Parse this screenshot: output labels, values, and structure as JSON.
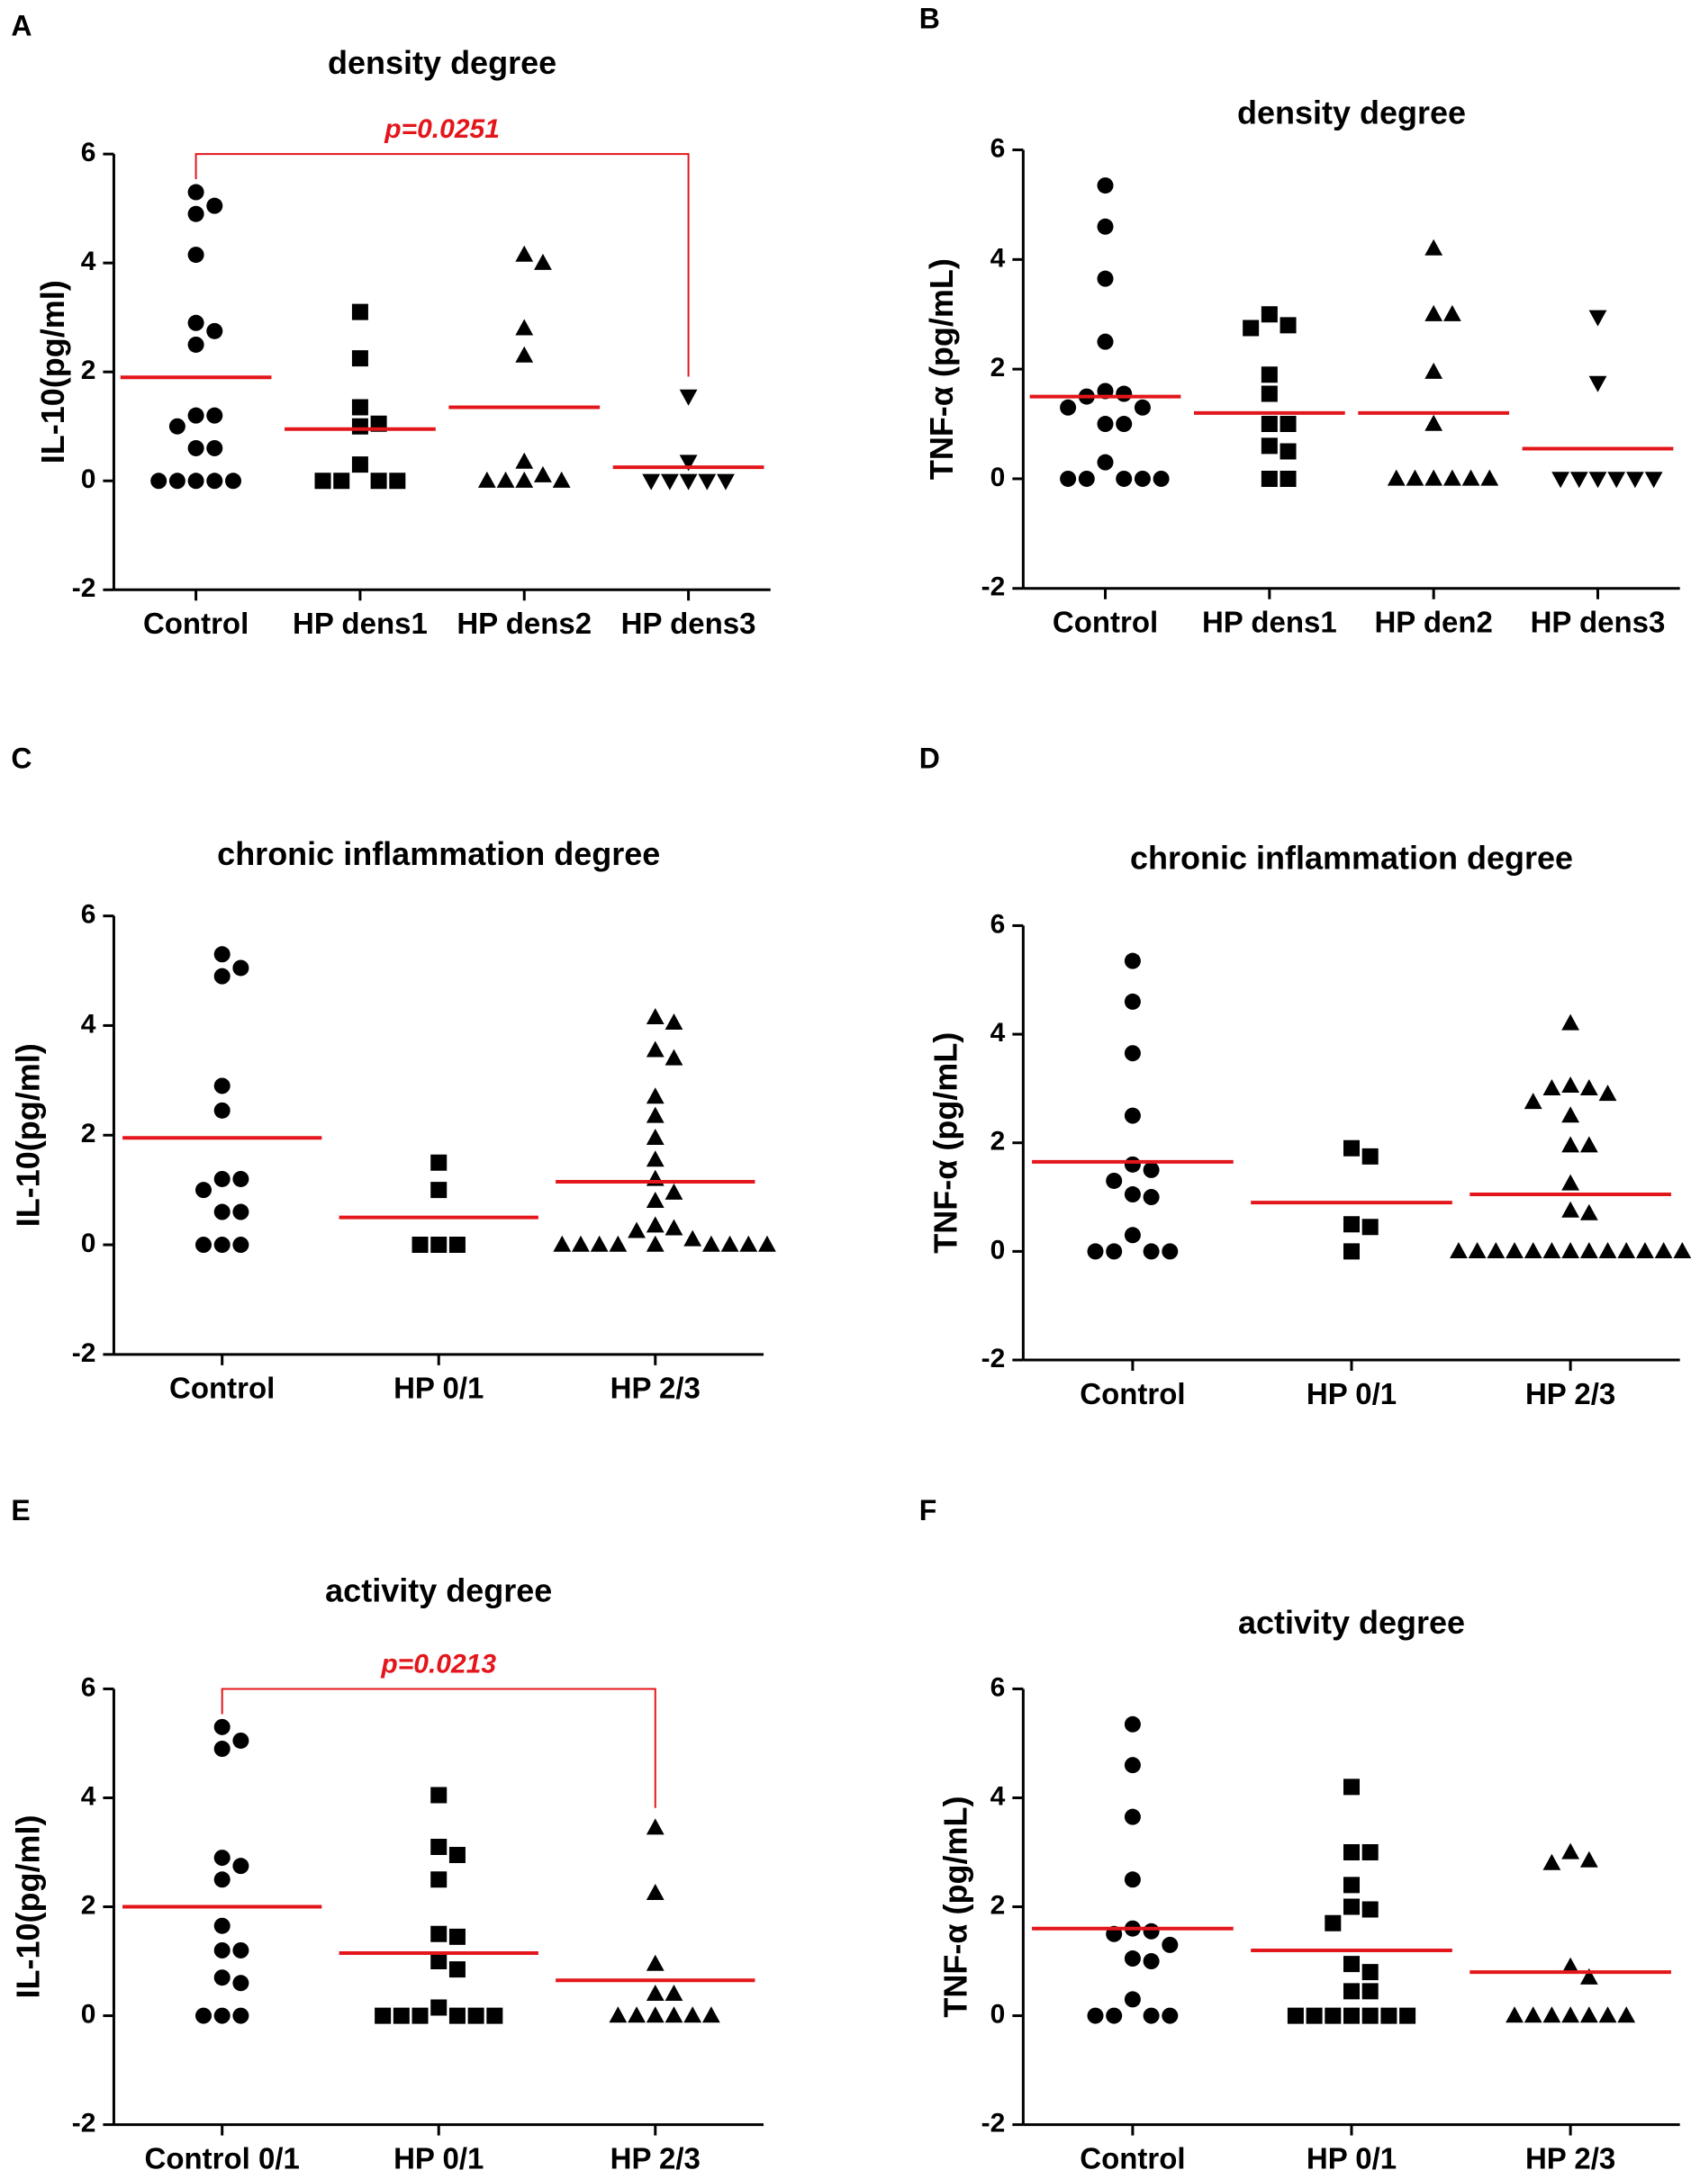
{
  "chart_data": [
    {
      "type": "strip",
      "label": "A",
      "title": "density degree",
      "ylabel": "IL-10(pg/ml)",
      "categories": [
        "Control",
        "HP dens1",
        "HP dens2",
        "HP dens3"
      ],
      "markers": [
        "circle",
        "square",
        "triangle",
        "triangle-down"
      ],
      "values": [
        [
          5.3,
          4.9,
          5.05,
          4.15,
          2.9,
          2.75,
          2.5,
          1.2,
          1.2,
          1.0,
          0.6,
          0.6,
          0,
          0,
          0,
          0,
          0
        ],
        [
          3.1,
          2.25,
          1.35,
          1.05,
          1.0,
          0.3,
          0,
          0,
          0,
          0
        ],
        [
          4.15,
          4.0,
          2.8,
          2.3,
          0.35,
          0.1,
          0,
          0,
          0,
          0
        ],
        [
          1.55,
          0.35,
          0,
          0,
          0,
          0,
          0
        ]
      ],
      "means": [
        1.9,
        0.95,
        1.35,
        0.25
      ],
      "mean_color": "#e3161b",
      "marker_color": "#000000",
      "ylim": [
        -2,
        6
      ],
      "yticks": [
        -2,
        0,
        2,
        4,
        6
      ],
      "annotation": {
        "text": "p=0.0251",
        "from": 0,
        "to": 3
      }
    },
    {
      "type": "strip",
      "label": "B",
      "title": "density degree",
      "ylabel": "TNF-α (pg/mL)",
      "categories": [
        "Control",
        "HP dens1",
        "HP den2",
        "HP dens3"
      ],
      "markers": [
        "circle",
        "square",
        "triangle",
        "triangle-down"
      ],
      "values": [
        [
          5.35,
          4.6,
          3.65,
          2.5,
          1.6,
          1.55,
          1.5,
          1.3,
          1.3,
          1.0,
          1.0,
          0.3,
          0,
          0,
          0,
          0,
          0
        ],
        [
          3.0,
          2.8,
          2.75,
          1.9,
          1.55,
          1.0,
          1.0,
          0.6,
          0.5,
          0,
          0
        ],
        [
          4.2,
          3.0,
          3.0,
          1.95,
          1.0,
          0,
          0,
          0,
          0,
          0,
          0
        ],
        [
          2.95,
          1.75,
          0,
          0,
          0,
          0,
          0,
          0
        ]
      ],
      "means": [
        1.5,
        1.2,
        1.2,
        0.55
      ],
      "mean_color": "#e3161b",
      "marker_color": "#000000",
      "ylim": [
        -2,
        6
      ],
      "yticks": [
        -2,
        0,
        2,
        4,
        6
      ]
    },
    {
      "type": "strip",
      "label": "C",
      "title": "chronic inflammation degree",
      "ylabel": "IL-10(pg/ml)",
      "categories": [
        "Control",
        "HP 0/1",
        "HP 2/3"
      ],
      "markers": [
        "circle",
        "square",
        "triangle"
      ],
      "values": [
        [
          5.3,
          5.05,
          4.9,
          2.9,
          2.45,
          1.2,
          1.2,
          1.0,
          0.6,
          0.6,
          0,
          0,
          0
        ],
        [
          1.5,
          1.0,
          0,
          0,
          0
        ],
        [
          4.15,
          4.05,
          3.55,
          3.4,
          2.7,
          2.35,
          1.95,
          1.55,
          1.2,
          0.95,
          0.8,
          0.35,
          0.3,
          0.25,
          0.1,
          0,
          0,
          0,
          0,
          0,
          0,
          0,
          0,
          0
        ]
      ],
      "means": [
        1.95,
        0.5,
        1.15
      ],
      "mean_color": "#e3161b",
      "marker_color": "#000000",
      "ylim": [
        -2,
        6
      ],
      "yticks": [
        -2,
        0,
        2,
        4,
        6
      ]
    },
    {
      "type": "strip",
      "label": "D",
      "title": "chronic inflammation degree",
      "ylabel": "TNF-α (pg/mL)",
      "categories": [
        "Control",
        "HP 0/1",
        "HP 2/3"
      ],
      "markers": [
        "circle",
        "square",
        "triangle"
      ],
      "values": [
        [
          5.35,
          4.6,
          3.65,
          2.5,
          1.6,
          1.5,
          1.3,
          1.05,
          1.0,
          0.3,
          0,
          0,
          0,
          0
        ],
        [
          1.9,
          1.75,
          0.5,
          0.45,
          0
        ],
        [
          4.2,
          3.05,
          3.0,
          3.0,
          2.9,
          2.75,
          2.5,
          1.95,
          1.95,
          1.25,
          0.75,
          0.7,
          0,
          0,
          0,
          0,
          0,
          0,
          0,
          0,
          0,
          0,
          0,
          0,
          0,
          0
        ]
      ],
      "means": [
        1.65,
        0.9,
        1.05
      ],
      "mean_color": "#e3161b",
      "marker_color": "#000000",
      "ylim": [
        -2,
        6
      ],
      "yticks": [
        -2,
        0,
        2,
        4,
        6
      ]
    },
    {
      "type": "strip",
      "label": "E",
      "title": "activity degree",
      "ylabel": "IL-10(pg/ml)",
      "categories": [
        "Control 0/1",
        "HP 0/1",
        "HP 2/3"
      ],
      "markers": [
        "circle",
        "square",
        "triangle"
      ],
      "values": [
        [
          5.3,
          5.05,
          4.9,
          2.9,
          2.75,
          2.5,
          1.65,
          1.2,
          1.2,
          0.7,
          0.6,
          0,
          0,
          0
        ],
        [
          4.05,
          3.1,
          2.95,
          2.5,
          1.5,
          1.45,
          1.0,
          0.85,
          0.15,
          0,
          0,
          0,
          0,
          0,
          0
        ],
        [
          3.45,
          2.25,
          0.95,
          0.4,
          0.4,
          0,
          0,
          0,
          0,
          0,
          0
        ]
      ],
      "means": [
        2.0,
        1.15,
        0.65
      ],
      "mean_color": "#e3161b",
      "marker_color": "#000000",
      "ylim": [
        -2,
        6
      ],
      "yticks": [
        -2,
        0,
        2,
        4,
        6
      ],
      "annotation": {
        "text": "p=0.0213",
        "from": 0,
        "to": 2
      }
    },
    {
      "type": "strip",
      "label": "F",
      "title": "activity degree",
      "ylabel": "TNF-α (pg/mL)",
      "categories": [
        "Control",
        "HP 0/1",
        "HP 2/3"
      ],
      "markers": [
        "circle",
        "square",
        "triangle"
      ],
      "values": [
        [
          5.35,
          4.6,
          3.65,
          2.5,
          1.6,
          1.55,
          1.5,
          1.3,
          1.05,
          1.0,
          0.3,
          0,
          0,
          0,
          0
        ],
        [
          4.2,
          3.0,
          3.0,
          2.4,
          2.0,
          1.95,
          1.7,
          0.95,
          0.8,
          0.45,
          0.45,
          0,
          0,
          0,
          0,
          0,
          0,
          0
        ],
        [
          3.0,
          2.85,
          2.8,
          0.9,
          0.7,
          0,
          0,
          0,
          0,
          0,
          0,
          0
        ]
      ],
      "means": [
        1.6,
        1.2,
        0.8
      ],
      "mean_color": "#e3161b",
      "marker_color": "#000000",
      "ylim": [
        -2,
        6
      ],
      "yticks": [
        -2,
        0,
        2,
        4,
        6
      ]
    }
  ]
}
